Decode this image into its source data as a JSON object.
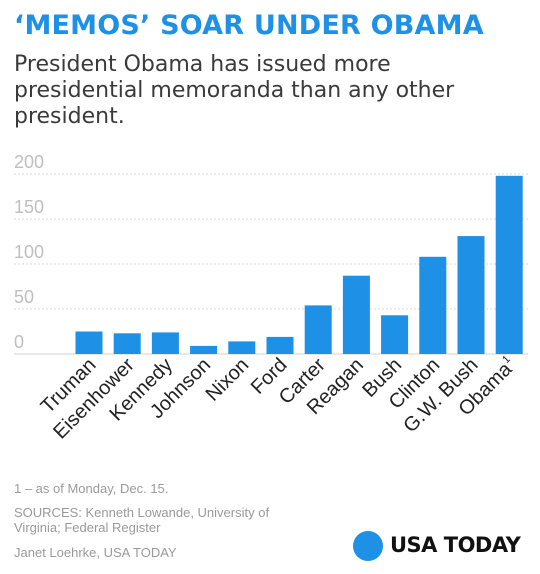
{
  "header": {
    "title": "‘MEMOS’ SOAR UNDER OBAMA",
    "subtitle": "President Obama has issued more presidential memoranda than any other president."
  },
  "chart_data": {
    "type": "bar",
    "categories": [
      "Truman",
      "Eisenhower",
      "Kennedy",
      "Johnson",
      "Nixon",
      "Ford",
      "Carter",
      "Reagan",
      "Bush",
      "Clinton",
      "G.W. Bush",
      "Obama"
    ],
    "category_superscripts": [
      "",
      "",
      "",
      "",
      "",
      "",
      "",
      "",
      "",
      "",
      "",
      "1"
    ],
    "values": [
      25,
      23,
      24,
      9,
      14,
      19,
      54,
      87,
      43,
      108,
      131,
      198
    ],
    "yticks": [
      "0",
      "50",
      "100",
      "150",
      "200"
    ],
    "ylim": [
      0,
      200
    ],
    "grid": true,
    "colors": {
      "bar": "#1e90e6",
      "grid": "#d9d9d9",
      "tick": "#bfbfbf"
    }
  },
  "footer": {
    "footnote": "1 – as of Monday, Dec. 15.",
    "sources": "SOURCES:  Kenneth Lowande, University of Virginia; Federal Register",
    "credit": "Janet Loehrke, USA TODAY",
    "logo_text": "USA TODAY"
  }
}
